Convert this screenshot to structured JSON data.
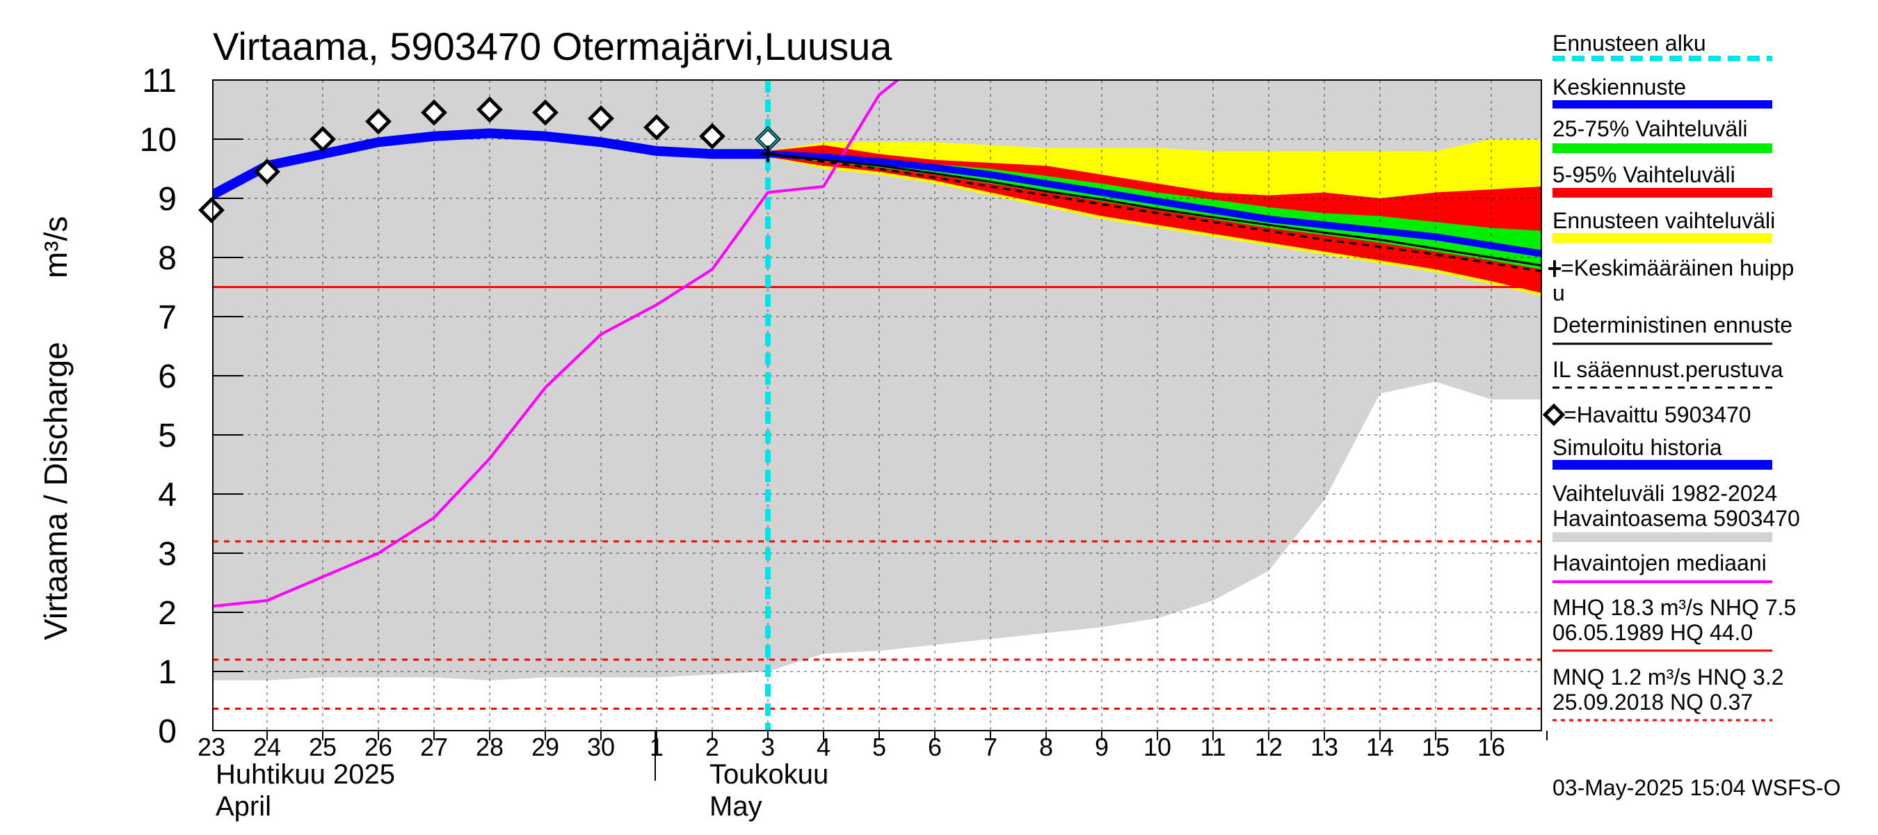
{
  "chart_data": {
    "type": "line",
    "title": "Virtaama, 5903470 Otermajärvi,Luusua",
    "ylabel": "Virtaama / Discharge",
    "yunit": "m³/s",
    "ylim": [
      0,
      11
    ],
    "yticks": [
      "0",
      "1",
      "2",
      "3",
      "4",
      "5",
      "6",
      "7",
      "8",
      "9",
      "10",
      "11"
    ],
    "x_days": [
      "23",
      "24",
      "25",
      "26",
      "27",
      "28",
      "29",
      "30",
      "1",
      "2",
      "3",
      "4",
      "5",
      "6",
      "7",
      "8",
      "9",
      "10",
      "11",
      "12",
      "13",
      "14",
      "15",
      "16"
    ],
    "month_labels": {
      "april_fi": "Huhtikuu  2025",
      "april_en": "April",
      "may_fi": "Toukokuu",
      "may_en": "May"
    },
    "forecast_start_day_index": 10,
    "reference_lines": [
      {
        "value": 7.5,
        "style": "solid",
        "color": "#ff0000"
      },
      {
        "value": 3.2,
        "style": "dashed",
        "color": "#ff0000"
      },
      {
        "value": 1.2,
        "style": "dashed",
        "color": "#ff0000"
      },
      {
        "value": 0.37,
        "style": "dashed",
        "color": "#ff0000"
      }
    ],
    "history_range": {
      "upper": [
        11,
        11,
        11,
        11,
        11,
        11,
        11,
        11,
        11,
        11,
        11,
        11,
        11,
        11,
        11,
        11,
        11,
        11,
        11,
        11,
        11,
        11,
        11,
        11,
        11
      ],
      "lower": [
        0.85,
        0.85,
        0.9,
        0.9,
        0.9,
        0.85,
        0.9,
        0.9,
        0.9,
        0.95,
        1.0,
        1.3,
        1.35,
        1.45,
        1.55,
        1.65,
        1.75,
        1.9,
        2.2,
        2.7,
        3.9,
        5.7,
        5.9,
        5.6,
        5.6
      ]
    },
    "series": [
      {
        "name": "Havaittu 5903470",
        "type": "observed",
        "color": "#000000",
        "values": [
          8.8,
          9.45,
          10.0,
          10.3,
          10.45,
          10.5,
          10.45,
          10.35,
          10.2,
          10.05,
          10.0
        ]
      },
      {
        "name": "Simuloitu historia",
        "type": "simulated",
        "color": "#0000ff",
        "values": [
          9.05,
          9.55,
          9.75,
          9.95,
          10.05,
          10.1,
          10.05,
          9.95,
          9.8,
          9.75,
          9.75
        ]
      },
      {
        "name": "Havaintojen mediaani",
        "type": "median",
        "color": "#ff00ff",
        "values": [
          2.1,
          2.2,
          2.6,
          3.0,
          3.6,
          4.6,
          5.8,
          6.7,
          7.2,
          7.8,
          9.1,
          9.2,
          10.75,
          11.5
        ]
      },
      {
        "name": "Keskiennuste",
        "type": "mean_forecast",
        "color": "#0000ff",
        "values": [
          9.75,
          9.7,
          9.62,
          9.52,
          9.4,
          9.25,
          9.1,
          8.95,
          8.8,
          8.65,
          8.55,
          8.45,
          8.35,
          8.2,
          8.05
        ]
      },
      {
        "name": "Deterministinen ennuste",
        "type": "deterministic",
        "color": "#000000",
        "values": [
          9.75,
          9.65,
          9.55,
          9.42,
          9.28,
          9.12,
          8.98,
          8.82,
          8.68,
          8.55,
          8.42,
          8.3,
          8.15,
          8.0,
          7.85
        ]
      },
      {
        "name": "IL sääennust.perustuva",
        "type": "il_forecast",
        "color": "#000000",
        "values": [
          9.75,
          9.62,
          9.5,
          9.35,
          9.2,
          9.05,
          8.9,
          8.75,
          8.6,
          8.45,
          8.3,
          8.18,
          8.05,
          7.9,
          7.75
        ]
      }
    ],
    "forecast_bands": {
      "range_all": {
        "name": "Ennusteen vaihteluväli",
        "color": "#ffff00",
        "upper": [
          9.8,
          9.95,
          9.95,
          9.95,
          9.9,
          9.85,
          9.85,
          9.85,
          9.8,
          9.8,
          9.8,
          9.8,
          9.8,
          10.0,
          10.0
        ],
        "lower": [
          9.7,
          9.5,
          9.4,
          9.25,
          9.05,
          8.85,
          8.65,
          8.5,
          8.35,
          8.2,
          8.05,
          7.9,
          7.75,
          7.55,
          7.35
        ]
      },
      "range_5_95": {
        "name": "5-95% Vaihteluväli",
        "color": "#ff0000",
        "upper": [
          9.8,
          9.9,
          9.75,
          9.65,
          9.6,
          9.55,
          9.4,
          9.25,
          9.1,
          9.05,
          9.1,
          9.0,
          9.1,
          9.15,
          9.2
        ],
        "lower": [
          9.7,
          9.55,
          9.45,
          9.3,
          9.1,
          8.9,
          8.7,
          8.55,
          8.4,
          8.25,
          8.1,
          7.95,
          7.8,
          7.6,
          7.4
        ]
      },
      "range_25_75": {
        "name": "25-75% Vaihteluväli",
        "color": "#00ee00",
        "upper": [
          9.78,
          9.75,
          9.65,
          9.58,
          9.5,
          9.38,
          9.25,
          9.1,
          8.98,
          8.85,
          8.75,
          8.7,
          8.6,
          8.5,
          8.45
        ],
        "lower": [
          9.72,
          9.62,
          9.52,
          9.4,
          9.25,
          9.1,
          8.95,
          8.8,
          8.65,
          8.5,
          8.38,
          8.25,
          8.1,
          7.95,
          7.8
        ]
      }
    },
    "mean_peak": {
      "name": "Keskimääräinen huippu",
      "day_index": 10,
      "value": 9.75
    }
  },
  "legend": {
    "forecast_start": "Ennusteen alku",
    "mean_forecast": "Keskiennuste",
    "range_25_75": "25-75% Vaihteluväli",
    "range_5_95": "5-95% Vaihteluväli",
    "range_all": "Ennusteen vaihteluväli",
    "mean_peak_line1": "=Keskimääräinen huipp",
    "mean_peak_line2": "u",
    "deterministic": "Deterministinen ennuste",
    "il_forecast": "IL sääennust.perustuva",
    "observed": "=Havaittu 5903470",
    "simulated": "Simuloitu historia",
    "history_range_line1": "Vaihteluväli 1982-2024",
    "history_range_line2": " Havaintoasema 5903470",
    "median": "Havaintojen mediaani",
    "mhq_line1": "MHQ 18.3 m³/s NHQ  7.5",
    "mhq_line2": "06.05.1989 HQ 44.0",
    "mnq_line1": "MNQ  1.2 m³/s HNQ  3.2",
    "mnq_line2": "25.09.2018 NQ 0.37"
  },
  "footer": "03-May-2025 15:04 WSFS-O",
  "colors": {
    "history_band": "#d3d3d3",
    "forecast_start_line": "#00e5e5",
    "grid": "#000000"
  }
}
